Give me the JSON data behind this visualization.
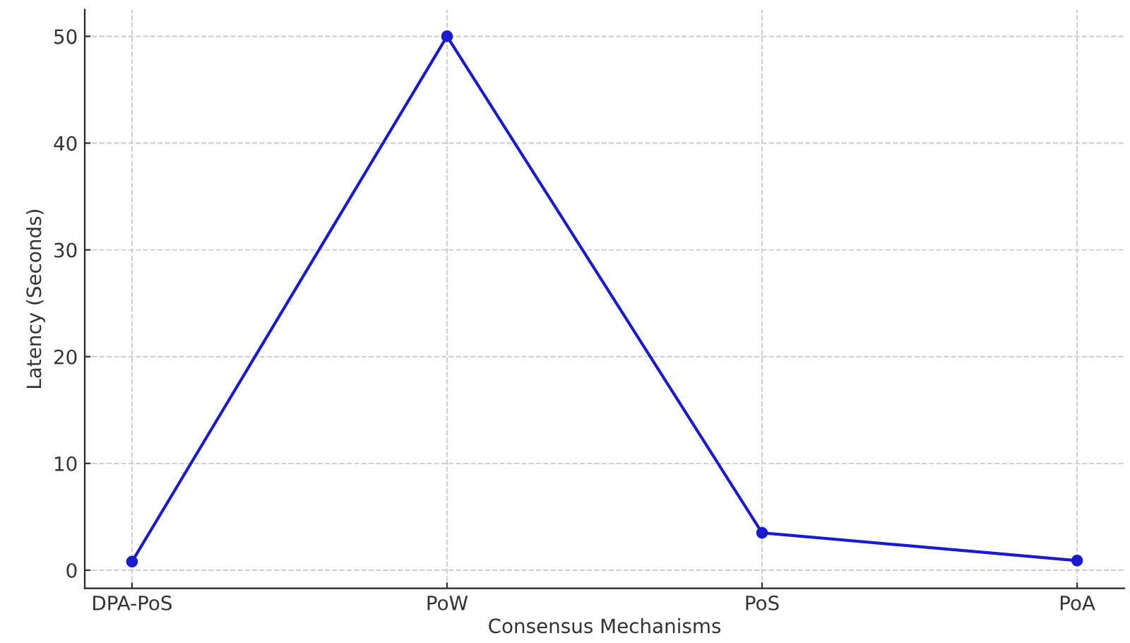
{
  "chart_data": {
    "type": "line",
    "xlabel": "Consensus Mechanisms",
    "ylabel": "Latency (Seconds)",
    "categories": [
      "DPA-PoS",
      "PoW",
      "PoS",
      "PoA"
    ],
    "series": [
      {
        "color": "#1a1ad0",
        "values": [
          0.8,
          50,
          3.5,
          0.9
        ]
      }
    ],
    "ylim": [
      -1.7,
      52.5
    ],
    "yticks": [
      0,
      10,
      20,
      30,
      40,
      50
    ],
    "grid": true,
    "marker": "circle",
    "line_style": "solid"
  }
}
